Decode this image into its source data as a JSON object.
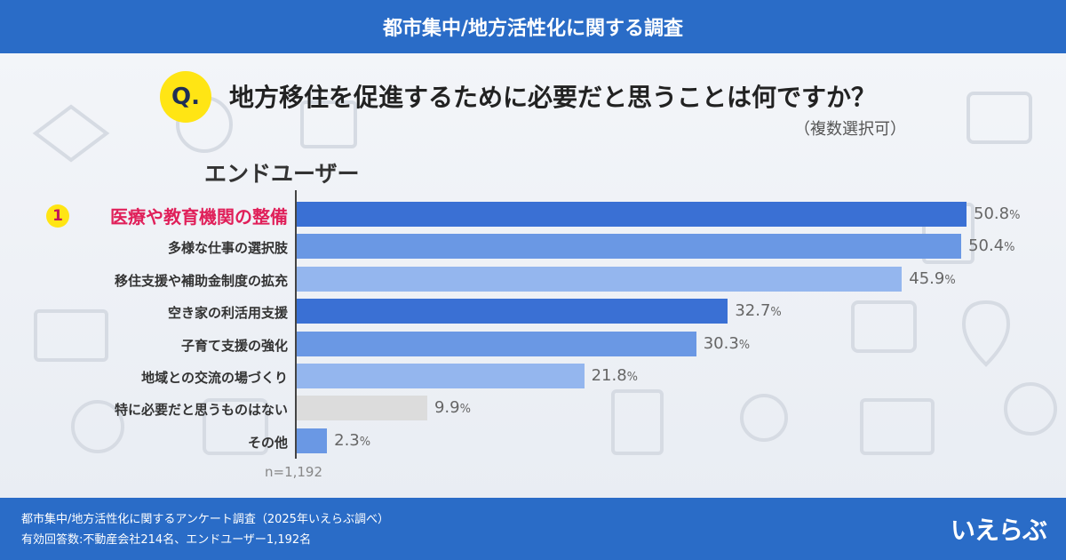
{
  "header": {
    "title": "都市集中/地方活性化に関する調査"
  },
  "question": {
    "badge": "Q.",
    "text": "地方移住を促進するために必要だと思うことは何ですか？",
    "note": "（複数選択可）"
  },
  "group_title": "エンドユーザー",
  "rank_badge": "1",
  "sample_size": "n=1,192",
  "colors": {
    "header": "#2a6cc7",
    "dark_bar": "#3a70d4",
    "mid_bar": "#6a98e4",
    "light_bar": "#94b6ee",
    "gray_bar": "#dcdcdc",
    "highlight_text": "#e0205a",
    "badge": "#ffe514"
  },
  "chart_data": {
    "type": "bar",
    "orientation": "horizontal",
    "categories": [
      "医療や教育機関の整備",
      "多様な仕事の選択肢",
      "移住支援や補助金制度の拡充",
      "空き家の利活用支援",
      "子育て支援の強化",
      "地域との交流の場づくり",
      "特に必要だと思うものはない",
      "その他"
    ],
    "values": [
      50.8,
      50.4,
      45.9,
      32.7,
      30.3,
      21.8,
      9.9,
      2.3
    ],
    "value_labels": [
      "50.8",
      "50.4",
      "45.9",
      "32.7",
      "30.3",
      "21.8",
      "9.9",
      "2.3"
    ],
    "unit": "%",
    "bar_colors": [
      "#3a70d4",
      "#6a98e4",
      "#94b6ee",
      "#3a70d4",
      "#6a98e4",
      "#94b6ee",
      "#dcdcdc",
      "#6a98e4"
    ],
    "xlim": [
      0,
      50.8
    ],
    "grid": false
  },
  "footer": {
    "line1": "都市集中/地方活性化に関するアンケート調査（2025年いえらぶ調べ）",
    "line2": "有効回答数:不動産会社214名、エンドユーザー1,192名",
    "brand": "いえらぶ"
  }
}
